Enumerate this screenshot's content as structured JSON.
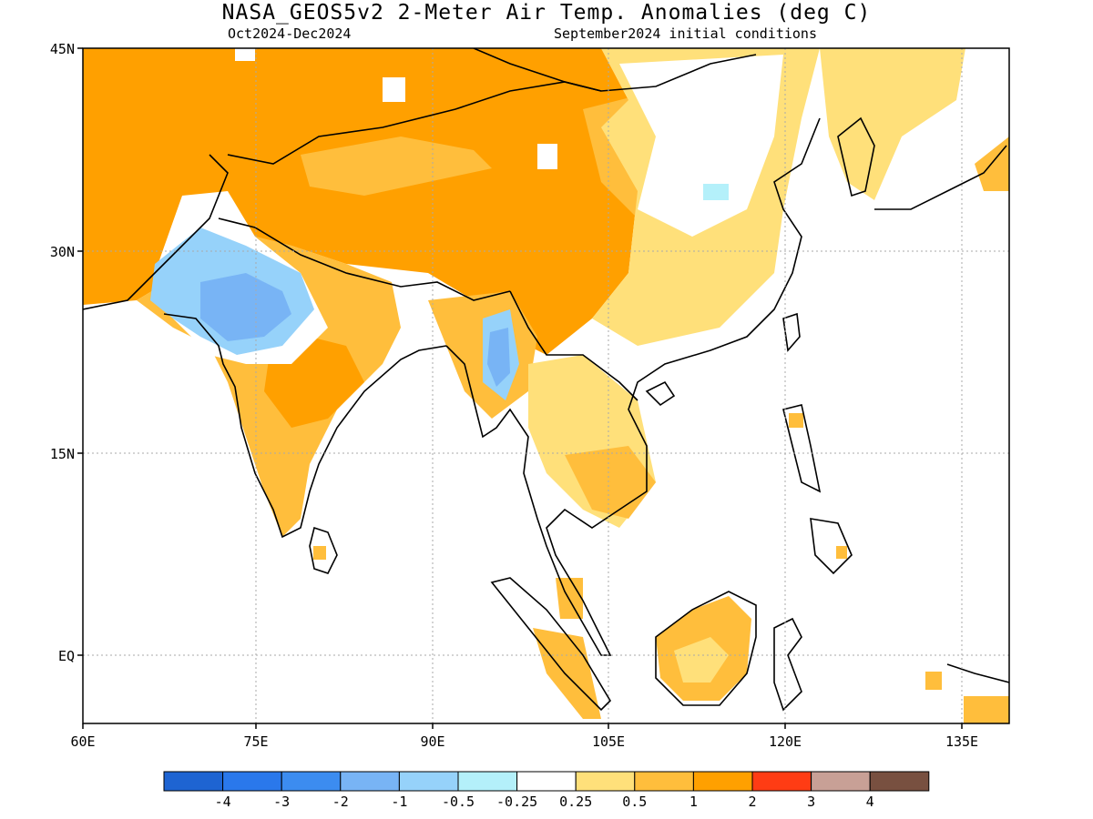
{
  "header": {
    "title": "NASA_GEOS5v2 2-Meter Air Temp. Anomalies (deg C)",
    "period": "Oct2024-Dec2024",
    "init": "September2024 initial conditions"
  },
  "axes": {
    "lat_labels": [
      "45N",
      "30N",
      "15N",
      "EQ"
    ],
    "lon_labels": [
      "60E",
      "75E",
      "90E",
      "105E",
      "120E",
      "135E"
    ]
  },
  "colorbar": {
    "colors": [
      "#1e64d2",
      "#2a78eb",
      "#3c8cf0",
      "#78b4f5",
      "#96d2fa",
      "#b4f0fa",
      "#ffffff",
      "#ffe07a",
      "#ffbe3c",
      "#ffa000",
      "#ff3c14",
      "#c8a096",
      "#785040"
    ],
    "labels": [
      "-4",
      "-3",
      "-2",
      "-1",
      "-0.5",
      "-0.25",
      "0.25",
      "0.5",
      "1",
      "2",
      "3",
      "4"
    ]
  }
}
